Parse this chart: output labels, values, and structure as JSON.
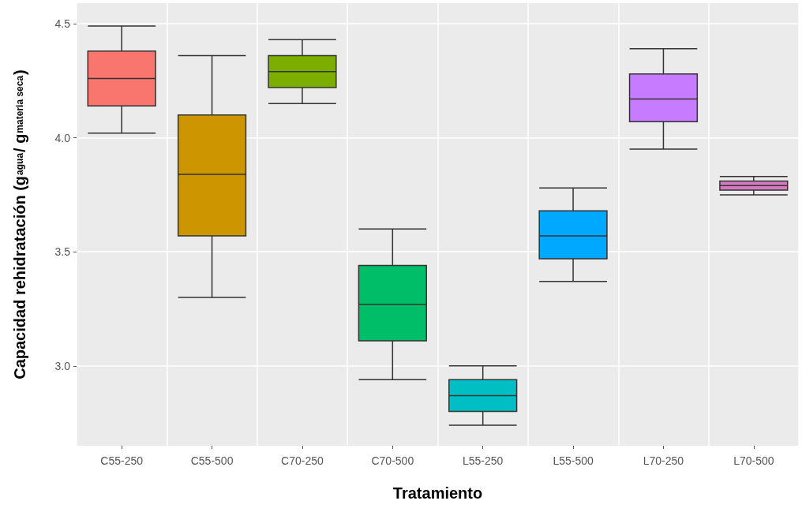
{
  "chart_data": {
    "type": "box",
    "xlabel": "Tratamiento",
    "ylabel": "Capacidad rehidratación (g$_{agua}$/ g$_{materia seca}$)",
    "categories": [
      "C55-250",
      "C55-500",
      "C70-250",
      "C70-500",
      "L55-250",
      "L55-500",
      "L70-250",
      "L70-500"
    ],
    "colors": [
      "#f8766d",
      "#cd9600",
      "#7cae00",
      "#00be67",
      "#00bfc4",
      "#00a9ff",
      "#c77cff",
      "#d57ac0"
    ],
    "boxes": [
      {
        "low": 4.02,
        "q1": 4.14,
        "median": 4.26,
        "q3": 4.38,
        "high": 4.49
      },
      {
        "low": 3.3,
        "q1": 3.57,
        "median": 3.84,
        "q3": 4.1,
        "high": 4.36
      },
      {
        "low": 4.15,
        "q1": 4.22,
        "median": 4.29,
        "q3": 4.36,
        "high": 4.43
      },
      {
        "low": 2.94,
        "q1": 3.11,
        "median": 3.27,
        "q3": 3.44,
        "high": 3.6
      },
      {
        "low": 2.74,
        "q1": 2.8,
        "median": 2.87,
        "q3": 2.94,
        "high": 3.0
      },
      {
        "low": 3.37,
        "q1": 3.47,
        "median": 3.57,
        "q3": 3.68,
        "high": 3.78
      },
      {
        "low": 3.95,
        "q1": 4.07,
        "median": 4.17,
        "q3": 4.28,
        "high": 4.39
      },
      {
        "low": 3.75,
        "q1": 3.77,
        "median": 3.79,
        "q3": 3.81,
        "high": 3.83
      }
    ],
    "ylim": [
      2.65,
      4.59
    ],
    "yticks": [
      {
        "value": 3,
        "label": "3.0"
      },
      {
        "value": 3.5,
        "label": "3.5"
      },
      {
        "value": 4,
        "label": "4.0"
      },
      {
        "value": 4.5,
        "label": "4.5"
      }
    ],
    "grid": true
  }
}
